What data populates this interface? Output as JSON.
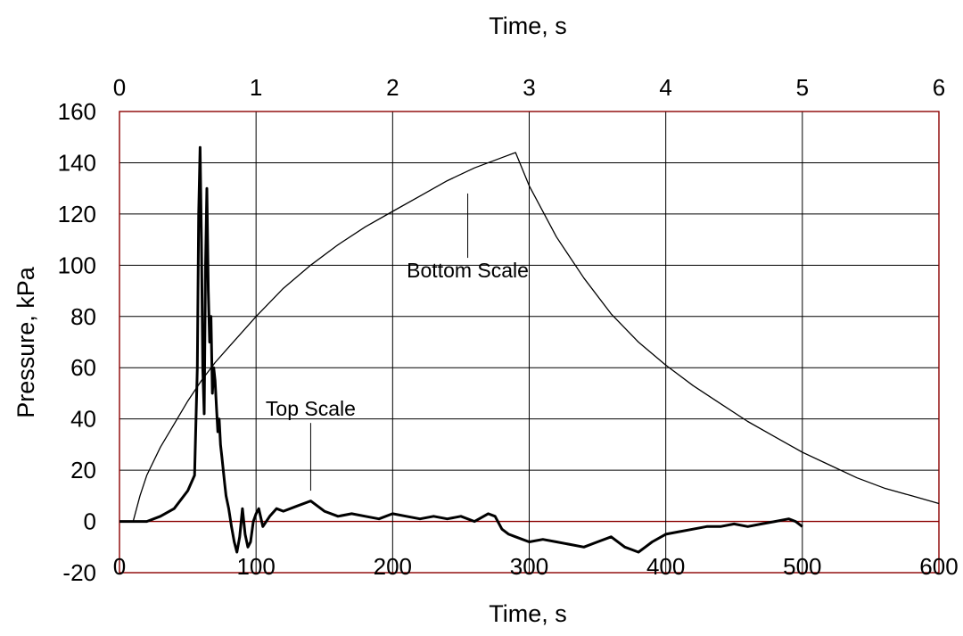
{
  "chart_data": {
    "type": "line",
    "ylabel": "Pressure,  kPa",
    "xlabel_top": "Time, s",
    "xlabel_bottom": "Time, s",
    "ylim": [
      -20,
      160
    ],
    "yticks": [
      -20,
      0,
      20,
      40,
      60,
      80,
      100,
      120,
      140,
      160
    ],
    "x_top_lim": [
      0,
      6
    ],
    "x_top_ticks": [
      0,
      1,
      2,
      3,
      4,
      5,
      6
    ],
    "x_bottom_lim": [
      0,
      600
    ],
    "x_bottom_ticks": [
      0,
      100,
      200,
      300,
      400,
      500,
      600
    ],
    "grid": true,
    "colors": {
      "frame": "#8b0000",
      "grid": "#000000",
      "zero_line": "#8b0000",
      "series": "#000000"
    },
    "series": [
      {
        "scale": "top",
        "x": [
          0,
          0.1,
          0.2,
          0.3,
          0.4,
          0.5,
          0.55,
          0.57,
          0.58,
          0.59,
          0.6,
          0.61,
          0.62,
          0.63,
          0.64,
          0.65,
          0.66,
          0.67,
          0.68,
          0.69,
          0.7,
          0.71,
          0.72,
          0.73,
          0.74,
          0.75,
          0.76,
          0.77,
          0.78,
          0.8,
          0.82,
          0.84,
          0.86,
          0.88,
          0.9,
          0.92,
          0.94,
          0.96,
          0.98,
          1.0,
          1.02,
          1.05,
          1.1,
          1.15,
          1.2,
          1.3,
          1.4,
          1.5,
          1.6,
          1.7,
          1.8,
          1.9,
          2.0,
          2.1,
          2.2,
          2.3,
          2.4,
          2.5,
          2.6,
          2.7,
          2.75,
          2.8,
          2.85,
          2.9,
          3.0,
          3.1,
          3.2,
          3.3,
          3.4,
          3.5,
          3.6,
          3.7,
          3.75,
          3.8,
          3.85,
          3.9,
          4.0,
          4.1,
          4.2,
          4.3,
          4.4,
          4.5,
          4.6,
          4.7,
          4.8,
          4.9,
          4.95,
          5.0
        ],
        "y": [
          0,
          0,
          0,
          2,
          5,
          12,
          18,
          60,
          120,
          146,
          110,
          60,
          42,
          100,
          130,
          90,
          70,
          80,
          50,
          60,
          55,
          45,
          35,
          40,
          30,
          25,
          20,
          15,
          10,
          5,
          -2,
          -8,
          -12,
          -6,
          5,
          -5,
          -10,
          -8,
          0,
          3,
          5,
          -2,
          2,
          5,
          4,
          6,
          8,
          4,
          2,
          3,
          2,
          1,
          3,
          2,
          1,
          2,
          1,
          2,
          0,
          3,
          2,
          -3,
          -5,
          -6,
          -8,
          -7,
          -8,
          -9,
          -10,
          -8,
          -6,
          -10,
          -11,
          -12,
          -10,
          -8,
          -5,
          -4,
          -3,
          -2,
          -2,
          -1,
          -2,
          -1,
          0,
          1,
          0,
          -2
        ]
      },
      {
        "scale": "bottom",
        "x": [
          10,
          15,
          20,
          30,
          40,
          50,
          60,
          70,
          80,
          100,
          120,
          140,
          160,
          180,
          200,
          220,
          240,
          260,
          280,
          290,
          300,
          320,
          340,
          360,
          380,
          400,
          420,
          440,
          460,
          480,
          500,
          520,
          540,
          560,
          580,
          600
        ],
        "y": [
          0,
          10,
          18,
          29,
          38,
          47,
          55,
          62,
          68,
          80,
          91,
          100,
          108,
          115,
          121,
          127,
          133,
          138,
          142,
          144,
          131,
          111,
          95,
          81,
          70,
          61,
          53,
          46,
          39,
          33,
          27,
          22,
          17,
          13,
          10,
          7
        ]
      }
    ],
    "annotations": [
      {
        "text": "Bottom Scale",
        "x": 255,
        "y": 98,
        "scale": "bottom",
        "leader_to": [
          255,
          128
        ]
      },
      {
        "text": "Top Scale",
        "x": 1.4,
        "y": 44,
        "scale": "top",
        "leader_to": [
          1.4,
          12
        ]
      }
    ]
  }
}
